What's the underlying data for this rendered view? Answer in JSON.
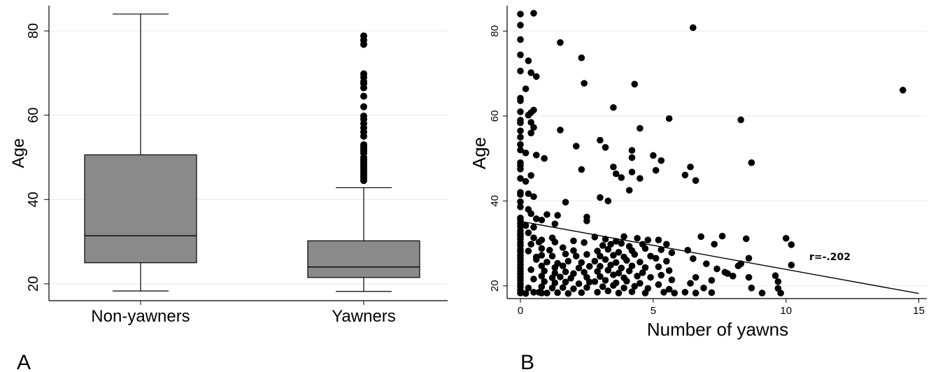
{
  "chart_data": [
    {
      "panel": "A",
      "type": "boxplot",
      "title": "",
      "xlabel": "",
      "ylabel": "Age",
      "ylim": [
        16,
        86
      ],
      "yticks": [
        20,
        40,
        60,
        80
      ],
      "grid": true,
      "categories": [
        "Non-yawners",
        "Yawners"
      ],
      "boxes": [
        {
          "category": "Non-yawners",
          "whisker_low": 18.3,
          "q1": 25,
          "median": 31.4,
          "q3": 50.6,
          "whisker_high": 84,
          "outliers": []
        },
        {
          "category": "Yawners",
          "whisker_low": 18.2,
          "q1": 21.5,
          "median": 24,
          "q3": 30.2,
          "whisker_high": 42.8,
          "outliers": [
            44.5,
            45,
            45.5,
            46,
            46.5,
            47,
            47.5,
            48,
            48.5,
            49,
            49.5,
            50,
            51,
            51.5,
            52,
            52.5,
            53,
            55,
            56,
            57,
            58,
            59,
            59.8,
            62,
            64.5,
            66.5,
            67.5,
            68,
            69,
            69.8,
            76.8,
            77.8,
            78.8
          ]
        }
      ]
    },
    {
      "panel": "B",
      "type": "scatter",
      "title": "",
      "xlabel": "Number of yawns",
      "ylabel": "Age",
      "xlim": [
        -0.5,
        15.3
      ],
      "ylim": [
        17,
        86
      ],
      "xticks": [
        0,
        5,
        10,
        15
      ],
      "yticks": [
        20,
        40,
        60,
        80
      ],
      "grid": true,
      "fit_line": {
        "x": [
          0,
          15
        ],
        "y": [
          35.2,
          18.2
        ]
      },
      "annotation": "r=-.202",
      "points": [
        [
          0,
          84
        ],
        [
          0.5,
          84.2
        ],
        [
          0,
          81.4
        ],
        [
          0,
          78
        ],
        [
          0,
          74.4
        ],
        [
          0.3,
          73
        ],
        [
          0,
          70.6
        ],
        [
          0.4,
          70.2
        ],
        [
          0.6,
          69.3
        ],
        [
          0.2,
          66.4
        ],
        [
          0,
          64.2
        ],
        [
          0,
          63.6
        ],
        [
          0,
          61
        ],
        [
          0.4,
          60.8
        ],
        [
          0.3,
          60.2
        ],
        [
          0.5,
          61.4
        ],
        [
          0,
          59
        ],
        [
          0,
          58.4
        ],
        [
          0.4,
          58.5
        ],
        [
          0.5,
          57.3
        ],
        [
          0,
          56.5
        ],
        [
          0.4,
          56
        ],
        [
          0,
          55
        ],
        [
          0,
          53.3
        ],
        [
          0,
          52
        ],
        [
          0.2,
          51.3
        ],
        [
          0.6,
          50.8
        ],
        [
          0.9,
          50
        ],
        [
          0,
          49
        ],
        [
          0,
          48.3
        ],
        [
          0,
          47.5
        ],
        [
          0.4,
          46
        ],
        [
          0,
          45.3
        ],
        [
          0.2,
          44.6
        ],
        [
          0,
          42
        ],
        [
          0,
          41.5
        ],
        [
          0.3,
          41.7
        ],
        [
          0.5,
          41
        ],
        [
          0,
          39.8
        ],
        [
          0,
          38.6
        ],
        [
          0.3,
          38
        ],
        [
          0.4,
          37
        ],
        [
          0,
          36
        ],
        [
          0,
          35.5
        ],
        [
          0.6,
          35.8
        ],
        [
          0,
          34.7
        ],
        [
          0,
          34
        ],
        [
          0.2,
          34.2
        ],
        [
          0.5,
          33.8
        ],
        [
          0,
          33
        ],
        [
          0,
          32.3
        ],
        [
          0.3,
          32.5
        ],
        [
          0,
          31.7
        ],
        [
          0,
          31
        ],
        [
          0.5,
          31.3
        ],
        [
          0,
          30.2
        ],
        [
          0,
          29.5
        ],
        [
          0.4,
          29.8
        ],
        [
          0,
          28.6
        ],
        [
          0,
          28
        ],
        [
          0.3,
          28.2
        ],
        [
          0,
          27.2
        ],
        [
          0,
          26.5
        ],
        [
          0.6,
          26.8
        ],
        [
          0,
          25.8
        ],
        [
          0,
          25
        ],
        [
          0,
          24.2
        ],
        [
          0,
          23.5
        ],
        [
          0.4,
          23.8
        ],
        [
          0,
          22.8
        ],
        [
          0,
          22
        ],
        [
          0,
          21.3
        ],
        [
          0.5,
          21.6
        ],
        [
          0,
          20.5
        ],
        [
          0,
          19.8
        ],
        [
          0,
          19
        ],
        [
          0.3,
          19.5
        ],
        [
          0,
          18.3
        ],
        [
          0.2,
          18.2
        ],
        [
          0.5,
          18.5
        ],
        [
          0.8,
          18.3
        ],
        [
          1.5,
          77.3
        ],
        [
          2.3,
          73.7
        ],
        [
          2.4,
          67.7
        ],
        [
          1.5,
          56.7
        ],
        [
          2.1,
          52.9
        ],
        [
          2.3,
          47.4
        ],
        [
          1.7,
          39.7
        ],
        [
          1.4,
          36.6
        ],
        [
          1.3,
          34.6
        ],
        [
          2.5,
          36.2
        ],
        [
          2.5,
          35.3
        ],
        [
          1.0,
          36.8
        ],
        [
          0.8,
          35.5
        ],
        [
          1.2,
          31.3
        ],
        [
          0.8,
          30.8
        ],
        [
          0.7,
          30.3
        ],
        [
          1.3,
          30.3
        ],
        [
          2.0,
          30.6
        ],
        [
          2.4,
          30.2
        ],
        [
          0.8,
          28.8
        ],
        [
          1.1,
          28.4
        ],
        [
          1.6,
          29.0
        ],
        [
          2.0,
          28.3
        ],
        [
          0.8,
          27.2
        ],
        [
          1.2,
          27.0
        ],
        [
          1.7,
          27.5
        ],
        [
          2.1,
          27.0
        ],
        [
          2.5,
          27.4
        ],
        [
          0.6,
          26.2
        ],
        [
          1.0,
          25.6
        ],
        [
          1.4,
          25.3
        ],
        [
          1.8,
          25.8
        ],
        [
          2.3,
          25.5
        ],
        [
          0.8,
          24.7
        ],
        [
          1.3,
          24.3
        ],
        [
          1.6,
          24.7
        ],
        [
          2.2,
          24.2
        ],
        [
          2.6,
          24.6
        ],
        [
          0.9,
          23.5
        ],
        [
          1.3,
          23.0
        ],
        [
          1.7,
          23.3
        ],
        [
          2.0,
          22.9
        ],
        [
          2.4,
          23.2
        ],
        [
          0.8,
          22.3
        ],
        [
          1.2,
          21.9
        ],
        [
          1.5,
          22.1
        ],
        [
          1.9,
          21.8
        ],
        [
          2.5,
          22.0
        ],
        [
          0.9,
          21.0
        ],
        [
          1.3,
          20.7
        ],
        [
          1.7,
          20.9
        ],
        [
          2.2,
          20.5
        ],
        [
          2.6,
          20.9
        ],
        [
          0.8,
          19.8
        ],
        [
          1.2,
          19.5
        ],
        [
          1.6,
          19.6
        ],
        [
          2.0,
          19.3
        ],
        [
          2.5,
          19.6
        ],
        [
          0.7,
          18.5
        ],
        [
          1.0,
          18.3
        ],
        [
          1.4,
          18.4
        ],
        [
          1.8,
          18.2
        ],
        [
          2.3,
          18.4
        ],
        [
          3.0,
          54.3
        ],
        [
          3.2,
          52.6
        ],
        [
          3.5,
          62
        ],
        [
          4.3,
          67.5
        ],
        [
          4.2,
          51.9
        ],
        [
          4.2,
          50.2
        ],
        [
          3.5,
          48
        ],
        [
          4.5,
          57.1
        ],
        [
          4.2,
          46.8
        ],
        [
          4.5,
          45.3
        ],
        [
          3.6,
          46.4
        ],
        [
          3.8,
          45.5
        ],
        [
          4.1,
          42.5
        ],
        [
          3.0,
          40.8
        ],
        [
          3.3,
          40
        ],
        [
          5.6,
          59.4
        ],
        [
          5.0,
          50.7
        ],
        [
          5.3,
          49.5
        ],
        [
          5.1,
          47.2
        ],
        [
          6.5,
          80.8
        ],
        [
          6.4,
          48
        ],
        [
          6.2,
          46.1
        ],
        [
          6.6,
          44.8
        ],
        [
          8.3,
          59.1
        ],
        [
          8.7,
          49
        ],
        [
          14.4,
          66.1
        ],
        [
          2.8,
          31.5
        ],
        [
          3.2,
          31.0
        ],
        [
          3.6,
          30.5
        ],
        [
          3.9,
          31.6
        ],
        [
          4.4,
          31.2
        ],
        [
          4.8,
          30.8
        ],
        [
          3.1,
          29.5
        ],
        [
          3.4,
          29.8
        ],
        [
          3.8,
          30.0
        ],
        [
          4.1,
          29.3
        ],
        [
          4.6,
          29.8
        ],
        [
          2.9,
          28.2
        ],
        [
          3.3,
          28.6
        ],
        [
          3.7,
          27.9
        ],
        [
          4.2,
          28.3
        ],
        [
          4.7,
          28.8
        ],
        [
          3.0,
          27.0
        ],
        [
          3.5,
          27.2
        ],
        [
          3.9,
          26.8
        ],
        [
          4.3,
          27.4
        ],
        [
          4.9,
          27.0
        ],
        [
          2.8,
          25.8
        ],
        [
          3.2,
          26.2
        ],
        [
          3.6,
          25.5
        ],
        [
          4.0,
          26.0
        ],
        [
          4.5,
          25.6
        ],
        [
          3.0,
          24.6
        ],
        [
          3.4,
          24.9
        ],
        [
          3.8,
          24.2
        ],
        [
          4.2,
          24.7
        ],
        [
          4.7,
          24.3
        ],
        [
          2.9,
          23.4
        ],
        [
          3.3,
          23.7
        ],
        [
          3.7,
          23.0
        ],
        [
          4.1,
          23.5
        ],
        [
          4.6,
          23.1
        ],
        [
          3.0,
          22.2
        ],
        [
          3.5,
          22.6
        ],
        [
          3.9,
          21.9
        ],
        [
          4.4,
          22.3
        ],
        [
          4.9,
          22.0
        ],
        [
          2.8,
          21.0
        ],
        [
          3.2,
          21.3
        ],
        [
          3.6,
          20.7
        ],
        [
          4.0,
          21.1
        ],
        [
          4.5,
          20.6
        ],
        [
          3.1,
          19.8
        ],
        [
          3.5,
          20.1
        ],
        [
          3.9,
          19.5
        ],
        [
          4.3,
          19.9
        ],
        [
          4.8,
          19.4
        ],
        [
          2.9,
          18.5
        ],
        [
          3.3,
          18.8
        ],
        [
          3.7,
          18.3
        ],
        [
          4.2,
          18.6
        ],
        [
          4.7,
          18.3
        ],
        [
          5.2,
          30.8
        ],
        [
          5.5,
          29.8
        ],
        [
          5.3,
          28.5
        ],
        [
          5.7,
          27.8
        ],
        [
          5.1,
          26.5
        ],
        [
          5.5,
          25.8
        ],
        [
          5.2,
          24.5
        ],
        [
          5.6,
          23.6
        ],
        [
          5.3,
          22.5
        ],
        [
          5.7,
          21.4
        ],
        [
          5.2,
          20.3
        ],
        [
          5.6,
          19.2
        ],
        [
          5.4,
          18.5
        ],
        [
          5.8,
          18.3
        ],
        [
          6.3,
          28.4
        ],
        [
          6.8,
          31.6
        ],
        [
          7.3,
          29.8
        ],
        [
          7.6,
          31.7
        ],
        [
          6.5,
          26.4
        ],
        [
          7.0,
          25.2
        ],
        [
          7.4,
          24.0
        ],
        [
          7.7,
          23.2
        ],
        [
          6.6,
          22.0
        ],
        [
          7.2,
          21.3
        ],
        [
          6.4,
          20.6
        ],
        [
          6.9,
          19.5
        ],
        [
          6.2,
          18.5
        ],
        [
          6.6,
          18.3
        ],
        [
          7.2,
          18.4
        ],
        [
          7.8,
          22.9
        ],
        [
          8.0,
          22.3
        ],
        [
          8.3,
          25.2
        ],
        [
          8.6,
          26.5
        ],
        [
          8.2,
          24.7
        ],
        [
          8.5,
          31.1
        ],
        [
          8.6,
          22.0
        ],
        [
          8.7,
          19.5
        ],
        [
          9.1,
          18.3
        ],
        [
          9.6,
          22.4
        ],
        [
          9.7,
          21.0
        ],
        [
          9.7,
          19.4
        ],
        [
          9.8,
          18.3
        ],
        [
          10.0,
          31.2
        ],
        [
          10.2,
          29.7
        ],
        [
          10.2,
          24.9
        ]
      ]
    }
  ],
  "panel_labels": [
    "A",
    "B"
  ]
}
